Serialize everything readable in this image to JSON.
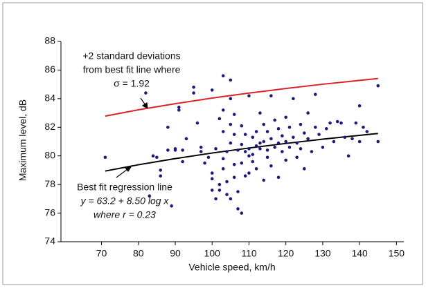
{
  "chart_data": {
    "type": "scatter",
    "x_label": "Vehicle speed, km/h",
    "y_label": "Maximum level, dB",
    "xlim": [
      59,
      152
    ],
    "xticks": [
      70,
      80,
      90,
      100,
      110,
      120,
      130,
      140,
      150
    ],
    "ylim": [
      74,
      88
    ],
    "yticks": [
      74,
      76,
      78,
      80,
      82,
      84,
      86,
      88
    ],
    "points": {
      "color": "#1c1c78",
      "x": [
        71,
        82,
        83,
        84,
        85,
        86,
        86,
        88,
        88,
        89,
        90,
        90,
        91,
        91,
        92,
        92,
        93,
        95,
        95,
        96,
        97,
        97,
        98,
        99,
        100,
        100,
        100,
        100,
        101,
        101,
        102,
        102,
        102,
        103,
        103,
        103,
        103,
        103,
        104,
        104,
        104,
        105,
        105,
        105,
        105,
        105,
        106,
        106,
        106,
        106,
        107,
        107,
        107,
        108,
        108,
        108,
        108,
        109,
        109,
        109,
        110,
        110,
        110,
        110,
        111,
        111,
        111,
        112,
        112,
        112,
        113,
        113,
        113,
        114,
        114,
        114,
        115,
        115,
        115,
        116,
        116,
        116,
        117,
        117,
        118,
        118,
        118,
        119,
        119,
        120,
        120,
        120,
        121,
        121,
        122,
        122,
        123,
        123,
        124,
        124,
        125,
        125,
        126,
        126,
        127,
        128,
        128,
        129,
        130,
        131,
        132,
        133,
        134,
        135,
        136,
        137,
        138,
        139,
        140,
        140,
        141,
        142,
        145,
        145
      ],
      "y": [
        79.9,
        84.4,
        77.2,
        80.0,
        79.9,
        79.0,
        78.6,
        82.0,
        80.4,
        76.5,
        80.5,
        80.4,
        83.4,
        83.2,
        79.6,
        80.4,
        81.2,
        84.8,
        84.4,
        82.3,
        80.3,
        80.6,
        79.5,
        79.9,
        84.6,
        78.8,
        78.4,
        77.6,
        77.0,
        80.5,
        82.6,
        78.0,
        77.6,
        85.6,
        83.2,
        81.7,
        79.8,
        79.1,
        80.3,
        78.2,
        77.3,
        85.3,
        84.0,
        82.2,
        80.9,
        77.0,
        82.9,
        81.5,
        79.4,
        78.5,
        80.4,
        77.5,
        76.3,
        82.1,
        80.8,
        79.5,
        76.0,
        81.5,
        80.3,
        78.6,
        84.2,
        80.5,
        80.0,
        78.8,
        81.3,
        80.1,
        79.6,
        81.7,
        80.7,
        79.1,
        83.0,
        80.9,
        80.5,
        82.2,
        81.0,
        78.3,
        81.7,
        80.4,
        79.9,
        84.2,
        81.2,
        79.3,
        82.5,
        80.6,
        81.9,
        80.9,
        78.5,
        81.4,
        80.3,
        82.7,
        81.0,
        79.7,
        82.0,
        80.6,
        84.0,
        81.3,
        80.9,
        79.9,
        82.2,
        80.5,
        81.6,
        79.1,
        83.0,
        81.2,
        80.3,
        84.3,
        82.0,
        81.5,
        80.6,
        81.9,
        82.3,
        81.0,
        82.4,
        82.3,
        81.3,
        80.0,
        81.2,
        82.3,
        83.5,
        81.0,
        82.0,
        81.7,
        84.9,
        81.0
      ]
    },
    "lines": [
      {
        "color": "#d9232b",
        "x": [
          71,
          80,
          90,
          100,
          110,
          120,
          130,
          145
        ],
        "values": [
          82.78,
          83.22,
          83.65,
          84.04,
          84.39,
          84.71,
          85.01,
          85.41
        ]
      },
      {
        "color": "#000000",
        "x": [
          71,
          80,
          90,
          100,
          110,
          120,
          130,
          145
        ],
        "values": [
          78.94,
          79.38,
          79.81,
          80.2,
          80.55,
          80.87,
          81.17,
          81.57
        ]
      }
    ],
    "annotations": [
      {
        "lines": [
          "+2 standard deviations",
          "from best fit line where",
          "σ = 1.92"
        ]
      },
      {
        "lines": [
          "Best fit regression line",
          "y = 63.2 + 8.50 log x",
          "where r = 0.23"
        ]
      }
    ]
  }
}
